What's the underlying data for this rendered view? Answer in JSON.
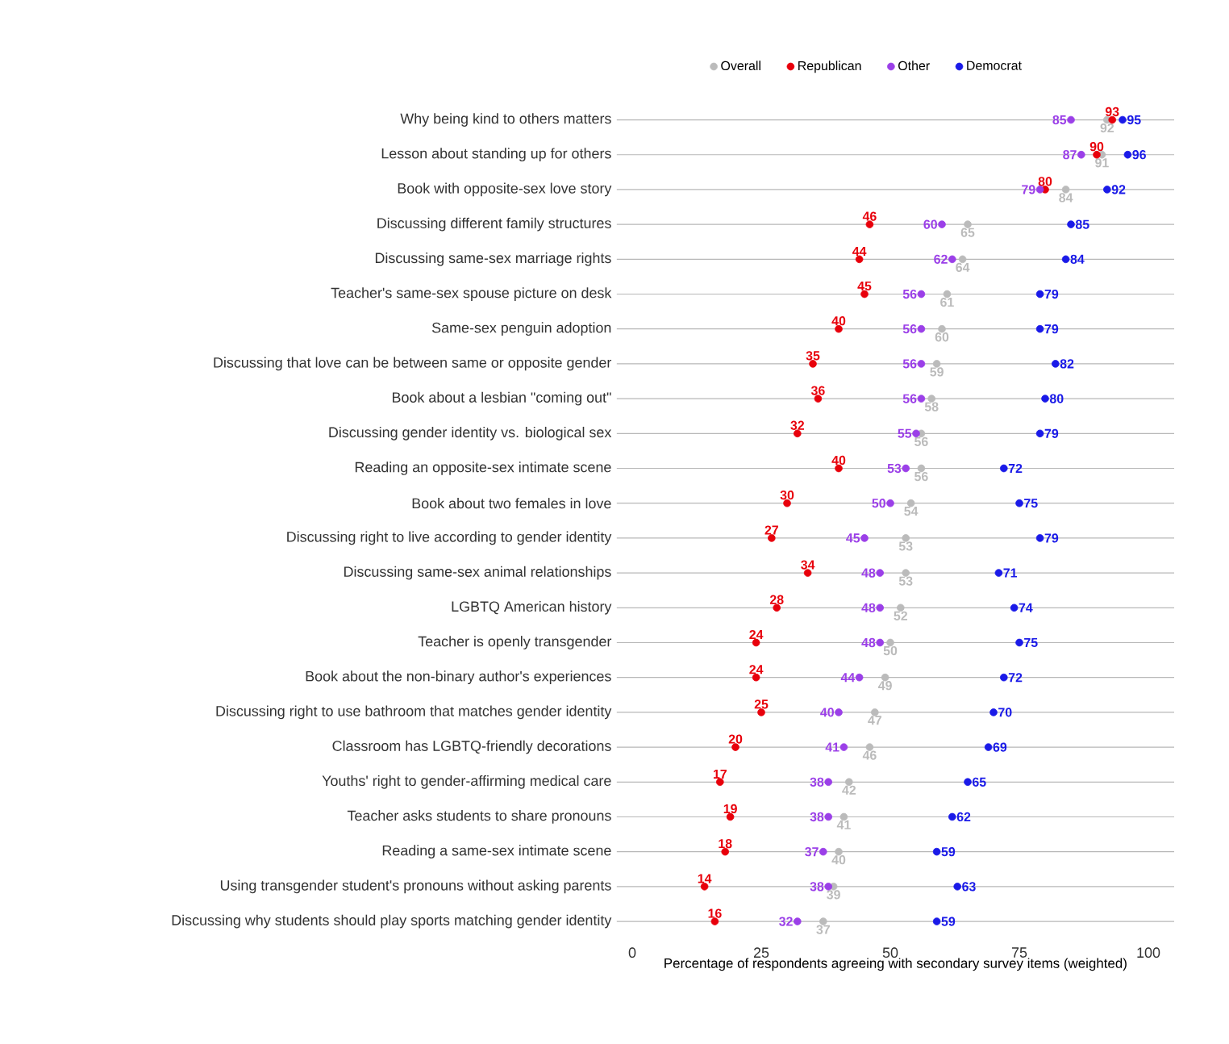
{
  "chart_data": {
    "type": "scatter",
    "categories": [
      "Why being kind to others matters",
      "Lesson about standing up for others",
      "Book with opposite-sex love story",
      "Discussing different family structures",
      "Discussing same-sex marriage rights",
      "Teacher's same-sex spouse picture on desk",
      "Same-sex penguin adoption",
      "Discussing that love can be between same or opposite gender",
      "Book about a lesbian \"coming out\"",
      "Discussing gender identity vs. biological sex",
      "Reading an opposite-sex intimate scene",
      "Book about two females in love",
      "Discussing right to live according to gender identity",
      "Discussing same-sex animal relationships",
      "LGBTQ American history",
      "Teacher is openly transgender",
      "Book about the non-binary author's experiences",
      "Discussing right to use bathroom that matches gender identity",
      "Classroom has LGBTQ-friendly decorations",
      "Youths' right to gender-affirming medical care",
      "Teacher asks students to share pronouns",
      "Reading a same-sex intimate scene",
      "Using transgender student's pronouns without asking parents",
      "Discussing why students should play sports matching gender identity"
    ],
    "series": [
      {
        "name": "Overall",
        "color": "#bbbbbb",
        "values": [
          92,
          91,
          84,
          65,
          64,
          61,
          60,
          59,
          58,
          56,
          56,
          54,
          53,
          53,
          52,
          50,
          49,
          47,
          46,
          42,
          41,
          40,
          39,
          37
        ]
      },
      {
        "name": "Republican",
        "color": "#e8000b",
        "values": [
          93,
          90,
          80,
          46,
          44,
          45,
          40,
          35,
          36,
          32,
          40,
          30,
          27,
          34,
          28,
          24,
          24,
          25,
          20,
          17,
          19,
          18,
          14,
          16
        ]
      },
      {
        "name": "Other",
        "color": "#9b3fe8",
        "values": [
          85,
          87,
          79,
          60,
          62,
          56,
          56,
          56,
          56,
          55,
          53,
          50,
          45,
          48,
          48,
          48,
          44,
          40,
          41,
          38,
          38,
          37,
          38,
          32
        ]
      },
      {
        "name": "Democrat",
        "color": "#1a1ae8",
        "values": [
          95,
          96,
          92,
          85,
          84,
          79,
          79,
          82,
          80,
          79,
          72,
          75,
          79,
          71,
          74,
          75,
          72,
          70,
          69,
          65,
          62,
          59,
          63,
          59
        ]
      }
    ],
    "xlim": [
      -3,
      105
    ],
    "xticks": [
      0,
      25,
      50,
      75,
      100
    ],
    "xlabel": "Percentage of respondents agreeing with secondary survey items (weighted)",
    "orientation": "horizontal",
    "grid": "y",
    "legend": "top",
    "marker": "circle",
    "data_labels": true
  }
}
